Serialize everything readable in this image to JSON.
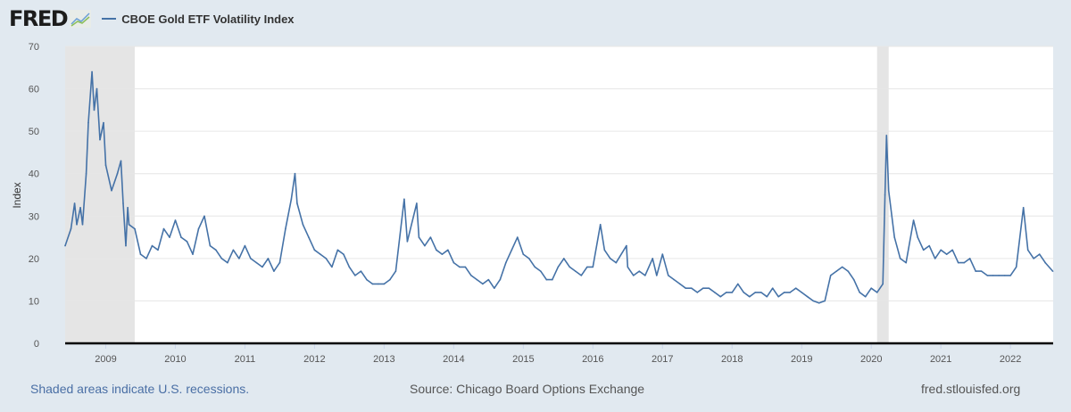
{
  "header": {
    "logo": "FRED",
    "series_label": "CBOE Gold ETF Volatility Index"
  },
  "footer": {
    "recession_note": "Shaded areas indicate U.S. recessions.",
    "source": "Source: Chicago Board Options Exchange",
    "site": "fred.stlouisfed.org"
  },
  "chart_data": {
    "type": "line",
    "title": "",
    "xlabel": "",
    "ylabel": "Index",
    "ylim": [
      0,
      70
    ],
    "yticks": [
      0,
      10,
      20,
      30,
      40,
      50,
      60,
      70
    ],
    "xlim": [
      "2008-06-01",
      "2022-08-12"
    ],
    "xticks": [
      "2009",
      "2010",
      "2011",
      "2012",
      "2013",
      "2014",
      "2015",
      "2016",
      "2017",
      "2018",
      "2019",
      "2020",
      "2021",
      "2022"
    ],
    "grid": true,
    "legend": "top-left",
    "line_color": "#4572a7",
    "recession_color": "#e5e5e5",
    "recessions": [
      [
        "2008-06-01",
        "2009-06-01"
      ],
      [
        "2020-02-01",
        "2020-04-01"
      ]
    ],
    "series": [
      {
        "name": "CBOE Gold ETF Volatility Index",
        "points": [
          [
            "2008-06-01",
            23
          ],
          [
            "2008-07-01",
            27
          ],
          [
            "2008-07-20",
            33
          ],
          [
            "2008-08-01",
            28
          ],
          [
            "2008-08-20",
            32
          ],
          [
            "2008-09-01",
            28
          ],
          [
            "2008-09-20",
            40
          ],
          [
            "2008-10-01",
            52
          ],
          [
            "2008-10-20",
            64
          ],
          [
            "2008-11-01",
            55
          ],
          [
            "2008-11-15",
            60
          ],
          [
            "2008-12-01",
            48
          ],
          [
            "2008-12-20",
            52
          ],
          [
            "2009-01-01",
            42
          ],
          [
            "2009-02-01",
            36
          ],
          [
            "2009-03-01",
            40
          ],
          [
            "2009-03-20",
            43
          ],
          [
            "2009-04-01",
            33
          ],
          [
            "2009-04-15",
            23
          ],
          [
            "2009-04-25",
            32
          ],
          [
            "2009-05-01",
            28
          ],
          [
            "2009-06-01",
            27
          ],
          [
            "2009-07-01",
            21
          ],
          [
            "2009-08-01",
            20
          ],
          [
            "2009-09-01",
            23
          ],
          [
            "2009-10-01",
            22
          ],
          [
            "2009-11-01",
            27
          ],
          [
            "2009-12-01",
            25
          ],
          [
            "2010-01-01",
            29
          ],
          [
            "2010-02-01",
            25
          ],
          [
            "2010-03-01",
            24
          ],
          [
            "2010-04-01",
            21
          ],
          [
            "2010-05-01",
            27
          ],
          [
            "2010-06-01",
            30
          ],
          [
            "2010-07-01",
            23
          ],
          [
            "2010-08-01",
            22
          ],
          [
            "2010-09-01",
            20
          ],
          [
            "2010-10-01",
            19
          ],
          [
            "2010-11-01",
            22
          ],
          [
            "2010-12-01",
            20
          ],
          [
            "2011-01-01",
            23
          ],
          [
            "2011-02-01",
            20
          ],
          [
            "2011-03-01",
            19
          ],
          [
            "2011-04-01",
            18
          ],
          [
            "2011-05-01",
            20
          ],
          [
            "2011-06-01",
            17
          ],
          [
            "2011-07-01",
            19
          ],
          [
            "2011-08-01",
            27
          ],
          [
            "2011-09-01",
            34
          ],
          [
            "2011-09-20",
            40
          ],
          [
            "2011-10-01",
            33
          ],
          [
            "2011-11-01",
            28
          ],
          [
            "2011-12-01",
            25
          ],
          [
            "2012-01-01",
            22
          ],
          [
            "2012-02-01",
            21
          ],
          [
            "2012-03-01",
            20
          ],
          [
            "2012-04-01",
            18
          ],
          [
            "2012-05-01",
            22
          ],
          [
            "2012-06-01",
            21
          ],
          [
            "2012-07-01",
            18
          ],
          [
            "2012-08-01",
            16
          ],
          [
            "2012-09-01",
            17
          ],
          [
            "2012-10-01",
            15
          ],
          [
            "2012-11-01",
            14
          ],
          [
            "2012-12-01",
            14
          ],
          [
            "2013-01-01",
            14
          ],
          [
            "2013-02-01",
            15
          ],
          [
            "2013-03-01",
            17
          ],
          [
            "2013-04-15",
            34
          ],
          [
            "2013-05-01",
            24
          ],
          [
            "2013-06-20",
            33
          ],
          [
            "2013-07-01",
            25
          ],
          [
            "2013-08-01",
            23
          ],
          [
            "2013-09-01",
            25
          ],
          [
            "2013-10-01",
            22
          ],
          [
            "2013-11-01",
            21
          ],
          [
            "2013-12-01",
            22
          ],
          [
            "2014-01-01",
            19
          ],
          [
            "2014-02-01",
            18
          ],
          [
            "2014-03-01",
            18
          ],
          [
            "2014-04-01",
            16
          ],
          [
            "2014-05-01",
            15
          ],
          [
            "2014-06-01",
            14
          ],
          [
            "2014-07-01",
            15
          ],
          [
            "2014-08-01",
            13
          ],
          [
            "2014-09-01",
            15
          ],
          [
            "2014-10-01",
            19
          ],
          [
            "2014-11-01",
            22
          ],
          [
            "2014-12-01",
            25
          ],
          [
            "2015-01-01",
            21
          ],
          [
            "2015-02-01",
            20
          ],
          [
            "2015-03-01",
            18
          ],
          [
            "2015-04-01",
            17
          ],
          [
            "2015-05-01",
            15
          ],
          [
            "2015-06-01",
            15
          ],
          [
            "2015-07-01",
            18
          ],
          [
            "2015-08-01",
            20
          ],
          [
            "2015-09-01",
            18
          ],
          [
            "2015-10-01",
            17
          ],
          [
            "2015-11-01",
            16
          ],
          [
            "2015-12-01",
            18
          ],
          [
            "2016-01-01",
            18
          ],
          [
            "2016-02-10",
            28
          ],
          [
            "2016-03-01",
            22
          ],
          [
            "2016-04-01",
            20
          ],
          [
            "2016-05-01",
            19
          ],
          [
            "2016-06-25",
            23
          ],
          [
            "2016-07-01",
            18
          ],
          [
            "2016-08-01",
            16
          ],
          [
            "2016-09-01",
            17
          ],
          [
            "2016-10-01",
            16
          ],
          [
            "2016-11-10",
            20
          ],
          [
            "2016-12-01",
            16
          ],
          [
            "2017-01-01",
            21
          ],
          [
            "2017-02-01",
            16
          ],
          [
            "2017-03-01",
            15
          ],
          [
            "2017-04-01",
            14
          ],
          [
            "2017-05-01",
            13
          ],
          [
            "2017-06-01",
            13
          ],
          [
            "2017-07-01",
            12
          ],
          [
            "2017-08-01",
            13
          ],
          [
            "2017-09-01",
            13
          ],
          [
            "2017-10-01",
            12
          ],
          [
            "2017-11-01",
            11
          ],
          [
            "2017-12-01",
            12
          ],
          [
            "2018-01-01",
            12
          ],
          [
            "2018-02-01",
            14
          ],
          [
            "2018-03-01",
            12
          ],
          [
            "2018-04-01",
            11
          ],
          [
            "2018-05-01",
            12
          ],
          [
            "2018-06-01",
            12
          ],
          [
            "2018-07-01",
            11
          ],
          [
            "2018-08-01",
            13
          ],
          [
            "2018-09-01",
            11
          ],
          [
            "2018-10-01",
            12
          ],
          [
            "2018-11-01",
            12
          ],
          [
            "2018-12-01",
            13
          ],
          [
            "2019-01-01",
            12
          ],
          [
            "2019-02-01",
            11
          ],
          [
            "2019-03-01",
            10
          ],
          [
            "2019-04-01",
            9.5
          ],
          [
            "2019-05-01",
            10
          ],
          [
            "2019-06-01",
            16
          ],
          [
            "2019-07-01",
            17
          ],
          [
            "2019-08-01",
            18
          ],
          [
            "2019-09-01",
            17
          ],
          [
            "2019-10-01",
            15
          ],
          [
            "2019-11-01",
            12
          ],
          [
            "2019-12-01",
            11
          ],
          [
            "2020-01-01",
            13
          ],
          [
            "2020-02-01",
            12
          ],
          [
            "2020-03-01",
            14
          ],
          [
            "2020-03-12",
            35
          ],
          [
            "2020-03-20",
            49
          ],
          [
            "2020-04-01",
            36
          ],
          [
            "2020-05-01",
            25
          ],
          [
            "2020-06-01",
            20
          ],
          [
            "2020-07-01",
            19
          ],
          [
            "2020-08-10",
            29
          ],
          [
            "2020-09-01",
            25
          ],
          [
            "2020-10-01",
            22
          ],
          [
            "2020-11-01",
            23
          ],
          [
            "2020-12-01",
            20
          ],
          [
            "2021-01-01",
            22
          ],
          [
            "2021-02-01",
            21
          ],
          [
            "2021-03-01",
            22
          ],
          [
            "2021-04-01",
            19
          ],
          [
            "2021-05-01",
            19
          ],
          [
            "2021-06-01",
            20
          ],
          [
            "2021-07-01",
            17
          ],
          [
            "2021-08-01",
            17
          ],
          [
            "2021-09-01",
            16
          ],
          [
            "2021-10-01",
            16
          ],
          [
            "2021-11-01",
            16
          ],
          [
            "2021-12-01",
            16
          ],
          [
            "2022-01-01",
            16
          ],
          [
            "2022-02-01",
            18
          ],
          [
            "2022-03-08",
            32
          ],
          [
            "2022-04-01",
            22
          ],
          [
            "2022-05-01",
            20
          ],
          [
            "2022-06-01",
            21
          ],
          [
            "2022-07-01",
            19
          ],
          [
            "2022-08-10",
            17
          ]
        ]
      }
    ]
  }
}
